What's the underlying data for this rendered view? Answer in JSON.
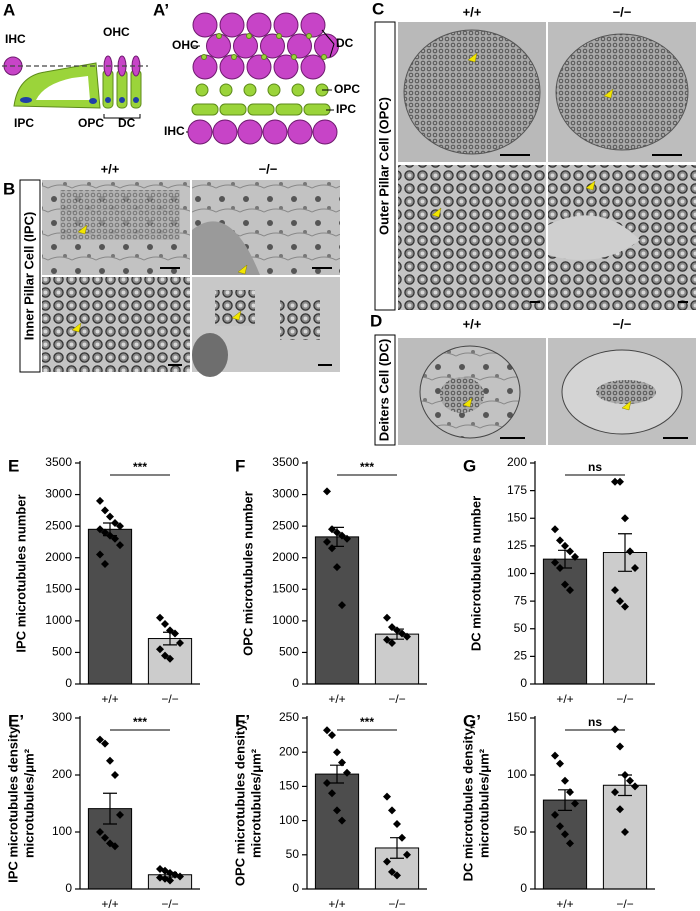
{
  "panel_a": {
    "letter": "A",
    "labels": [
      "IHC",
      "OHC",
      "IPC",
      "OPC",
      "DC"
    ]
  },
  "panel_a2": {
    "letter": "A’",
    "labels": [
      "OHC",
      "DC",
      "OPC",
      "IPC",
      "IHC"
    ]
  },
  "panel_b": {
    "letter": "B",
    "title": "Inner Pillar Cell (IPC)",
    "genotypes": [
      "+/+",
      "−/−"
    ]
  },
  "panel_c": {
    "letter": "C",
    "title": "Outer Pillar Cell (OPC)",
    "genotypes": [
      "+/+",
      "−/−"
    ]
  },
  "panel_d": {
    "letter": "D",
    "title": "Deiters Cell (DC)",
    "genotypes": [
      "+/+",
      "−/−"
    ]
  },
  "chart_data": [
    {
      "type": "bar",
      "panel": "E",
      "ylabel": [
        "IPC microtubules number"
      ],
      "categories": [
        "+/+",
        "−/−"
      ],
      "values": [
        2450,
        720
      ],
      "errors": [
        100,
        100
      ],
      "colors": [
        "#4d4d4d",
        "#cccccc"
      ],
      "points": [
        [
          2900,
          2750,
          2650,
          2550,
          2500,
          2450,
          2400,
          2350,
          2300,
          2200,
          2050,
          1900
        ],
        [
          1050,
          950,
          850,
          800,
          650,
          550,
          450,
          400
        ]
      ],
      "significance": "***",
      "ylim": [
        0,
        3500
      ],
      "yticks": [
        0,
        500,
        1000,
        1500,
        2000,
        2500,
        3000,
        3500
      ]
    },
    {
      "type": "bar",
      "panel": "F",
      "ylabel": [
        "OPC microtubules number"
      ],
      "categories": [
        "+/+",
        "−/−"
      ],
      "values": [
        2330,
        790
      ],
      "errors": [
        150,
        80
      ],
      "colors": [
        "#4d4d4d",
        "#cccccc"
      ],
      "points": [
        [
          3050,
          2450,
          2400,
          2350,
          2300,
          2250,
          2150,
          1850,
          1250
        ],
        [
          1050,
          900,
          850,
          800,
          750,
          700,
          650
        ]
      ],
      "significance": "***",
      "ylim": [
        0,
        3500
      ],
      "yticks": [
        0,
        500,
        1000,
        1500,
        2000,
        2500,
        3000,
        3500
      ]
    },
    {
      "type": "bar",
      "panel": "G",
      "ylabel": [
        "DC microtubules number"
      ],
      "categories": [
        "+/+",
        "−/−"
      ],
      "values": [
        113,
        119
      ],
      "errors": [
        8,
        17
      ],
      "colors": [
        "#4d4d4d",
        "#cccccc"
      ],
      "points": [
        [
          140,
          130,
          125,
          120,
          115,
          110,
          105,
          90,
          85
        ],
        [
          183,
          183,
          150,
          120,
          105,
          85,
          75,
          70
        ]
      ],
      "significance": "ns",
      "ylim": [
        0,
        200
      ],
      "yticks": [
        0,
        25,
        50,
        75,
        100,
        125,
        150,
        175,
        200
      ]
    },
    {
      "type": "bar",
      "panel": "E’",
      "ylabel": [
        "IPC microtubules density,",
        "microtubules/μm²"
      ],
      "categories": [
        "+/+",
        "−/−"
      ],
      "values": [
        141,
        25
      ],
      "errors": [
        27,
        4
      ],
      "colors": [
        "#4d4d4d",
        "#cccccc"
      ],
      "points": [
        [
          262,
          255,
          225,
          200,
          130,
          100,
          90,
          80,
          75
        ],
        [
          35,
          32,
          28,
          25,
          22,
          20,
          18,
          15
        ]
      ],
      "significance": "***",
      "ylim": [
        0,
        300
      ],
      "yticks": [
        0,
        100,
        200,
        300
      ]
    },
    {
      "type": "bar",
      "panel": "F’",
      "ylabel": [
        "OPC microtubules density,",
        "microtubules/μm²"
      ],
      "categories": [
        "+/+",
        "−/−"
      ],
      "values": [
        168,
        60
      ],
      "errors": [
        13,
        15
      ],
      "colors": [
        "#4d4d4d",
        "#cccccc"
      ],
      "points": [
        [
          232,
          225,
          200,
          185,
          170,
          155,
          140,
          115,
          100
        ],
        [
          135,
          115,
          95,
          75,
          50,
          40,
          25,
          20
        ]
      ],
      "significance": "***",
      "ylim": [
        0,
        250
      ],
      "yticks": [
        0,
        50,
        100,
        150,
        200,
        250
      ]
    },
    {
      "type": "bar",
      "panel": "G’",
      "ylabel": [
        "DC microtubules density,",
        "microtubules/μm²"
      ],
      "categories": [
        "+/+",
        "−/−"
      ],
      "values": [
        78,
        91
      ],
      "errors": [
        9,
        9
      ],
      "colors": [
        "#4d4d4d",
        "#cccccc"
      ],
      "points": [
        [
          117,
          110,
          95,
          85,
          75,
          65,
          55,
          48,
          40
        ],
        [
          140,
          125,
          100,
          95,
          90,
          85,
          70,
          50
        ]
      ],
      "significance": "ns",
      "ylim": [
        0,
        150
      ],
      "yticks": [
        0,
        50,
        100,
        150
      ]
    }
  ]
}
